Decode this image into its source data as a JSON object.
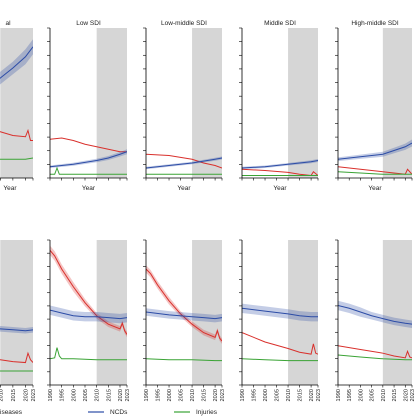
{
  "chart_data": {
    "type": "line",
    "x_range": [
      1990,
      2023
    ],
    "x_ticks": [
      "1990",
      "1995",
      "2000",
      "2005",
      "2010",
      "2015",
      "2020",
      "2023"
    ],
    "shade_range": [
      2010,
      2023
    ],
    "panels_top": [
      {
        "title": "al",
        "series": [
          {
            "key": "ncd",
            "x": [
              1990,
              2000,
              2010,
              2015,
              2020,
              2023
            ],
            "y": [
              0.55,
              0.65,
              0.8,
              0.88,
              0.97,
              1.05
            ],
            "band": [
              0.04,
              0.045,
              0.05,
              0.05,
              0.06,
              0.06
            ]
          },
          {
            "key": "comm",
            "x": [
              1990,
              2000,
              2010,
              2015,
              2020,
              2021,
              2022,
              2023
            ],
            "y": [
              0.45,
              0.41,
              0.37,
              0.34,
              0.33,
              0.38,
              0.3,
              0.3
            ],
            "band": [
              0,
              0,
              0,
              0,
              0,
              0,
              0,
              0
            ]
          },
          {
            "key": "inj",
            "x": [
              1990,
              2000,
              2010,
              2020,
              2023
            ],
            "y": [
              0.15,
              0.14,
              0.15,
              0.15,
              0.16
            ],
            "band": [
              0,
              0,
              0,
              0,
              0
            ]
          }
        ]
      },
      {
        "title": "Low SDI",
        "series": [
          {
            "key": "comm",
            "x": [
              1990,
              1995,
              2000,
              2005,
              2010,
              2015,
              2020,
              2023
            ],
            "y": [
              0.31,
              0.32,
              0.3,
              0.27,
              0.25,
              0.23,
              0.21,
              0.21
            ],
            "band": [
              0,
              0,
              0,
              0,
              0,
              0,
              0,
              0
            ]
          },
          {
            "key": "ncd",
            "x": [
              1990,
              2000,
              2010,
              2015,
              2020,
              2023
            ],
            "y": [
              0.09,
              0.11,
              0.14,
              0.16,
              0.19,
              0.21
            ],
            "band": [
              0.01,
              0.012,
              0.014,
              0.016,
              0.018,
              0.02
            ]
          },
          {
            "key": "inj",
            "x": [
              1990,
              1992,
              1993,
              1994,
              2000,
              2010,
              2020,
              2023
            ],
            "y": [
              0.03,
              0.03,
              0.08,
              0.03,
              0.03,
              0.03,
              0.03,
              0.03
            ],
            "band": [
              0,
              0,
              0,
              0,
              0,
              0,
              0,
              0
            ]
          }
        ]
      },
      {
        "title": "Low-middle SDI",
        "series": [
          {
            "key": "comm",
            "x": [
              1990,
              2000,
              2010,
              2015,
              2020,
              2023
            ],
            "y": [
              0.19,
              0.18,
              0.15,
              0.12,
              0.1,
              0.08
            ],
            "band": [
              0,
              0,
              0,
              0,
              0,
              0
            ]
          },
          {
            "key": "ncd",
            "x": [
              1990,
              2000,
              2010,
              2020,
              2023
            ],
            "y": [
              0.08,
              0.1,
              0.12,
              0.15,
              0.16
            ],
            "band": [
              0.01,
              0.01,
              0.01,
              0.012,
              0.012
            ]
          },
          {
            "key": "inj",
            "x": [
              1990,
              2000,
              2010,
              2020,
              2023
            ],
            "y": [
              0.03,
              0.03,
              0.03,
              0.03,
              0.03
            ],
            "band": [
              0,
              0,
              0,
              0,
              0
            ]
          }
        ]
      },
      {
        "title": "Middle SDI",
        "series": [
          {
            "key": "ncd",
            "x": [
              1990,
              2000,
              2010,
              2020,
              2023
            ],
            "y": [
              0.08,
              0.09,
              0.11,
              0.13,
              0.14
            ],
            "band": [
              0.01,
              0.01,
              0.01,
              0.012,
              0.012
            ]
          },
          {
            "key": "comm",
            "x": [
              1990,
              2000,
              2010,
              2015,
              2020,
              2021,
              2023
            ],
            "y": [
              0.07,
              0.06,
              0.045,
              0.03,
              0.02,
              0.05,
              0.02
            ],
            "band": [
              0,
              0,
              0,
              0,
              0,
              0,
              0
            ]
          },
          {
            "key": "inj",
            "x": [
              1990,
              2000,
              2010,
              2020,
              2023
            ],
            "y": [
              0.02,
              0.02,
              0.02,
              0.02,
              0.02
            ],
            "band": [
              0,
              0,
              0,
              0,
              0
            ]
          }
        ]
      },
      {
        "title": "High-middle SDI",
        "series": [
          {
            "key": "ncd",
            "x": [
              1990,
              2000,
              2010,
              2015,
              2020,
              2023
            ],
            "y": [
              0.15,
              0.17,
              0.19,
              0.22,
              0.25,
              0.28
            ],
            "band": [
              0.015,
              0.017,
              0.02,
              0.022,
              0.025,
              0.028
            ]
          },
          {
            "key": "comm",
            "x": [
              1990,
              2000,
              2010,
              2015,
              2020,
              2021,
              2023
            ],
            "y": [
              0.09,
              0.07,
              0.05,
              0.04,
              0.03,
              0.07,
              0.03
            ],
            "band": [
              0,
              0,
              0,
              0,
              0,
              0,
              0
            ]
          },
          {
            "key": "inj",
            "x": [
              1990,
              2000,
              2010,
              2020,
              2023
            ],
            "y": [
              0.05,
              0.04,
              0.03,
              0.03,
              0.03
            ],
            "band": [
              0,
              0,
              0,
              0,
              0
            ]
          }
        ]
      }
    ],
    "panels_bottom": [
      {
        "series": [
          {
            "key": "ncd",
            "x": [
              1990,
              2000,
              2010,
              2015,
              2020,
              2023
            ],
            "y": [
              0.64,
              0.62,
              0.6,
              0.59,
              0.58,
              0.59
            ],
            "band": [
              0.03,
              0.03,
              0.03,
              0.03,
              0.03,
              0.03
            ]
          },
          {
            "key": "comm",
            "x": [
              1990,
              2000,
              2010,
              2015,
              2020,
              2021,
              2022,
              2023
            ],
            "y": [
              0.35,
              0.31,
              0.27,
              0.25,
              0.24,
              0.34,
              0.27,
              0.24
            ],
            "band": [
              0,
              0,
              0,
              0,
              0,
              0,
              0,
              0
            ]
          },
          {
            "key": "inj",
            "x": [
              1990,
              2000,
              2010,
              2020,
              2023
            ],
            "y": [
              0.18,
              0.16,
              0.15,
              0.15,
              0.15
            ],
            "band": [
              0,
              0,
              0,
              0,
              0
            ]
          }
        ]
      },
      {
        "series": [
          {
            "key": "comm",
            "x": [
              1990,
              1992,
              1995,
              2000,
              2005,
              2010,
              2015,
              2020,
              2021,
              2022,
              2023
            ],
            "y": [
              1.44,
              1.38,
              1.24,
              1.05,
              0.88,
              0.74,
              0.65,
              0.6,
              0.66,
              0.58,
              0.54
            ],
            "band": [
              0.05,
              0.05,
              0.05,
              0.05,
              0.04,
              0.03,
              0.03,
              0.03,
              0.03,
              0.03,
              0.03
            ]
          },
          {
            "key": "ncd",
            "x": [
              1990,
              1995,
              2000,
              2005,
              2010,
              2015,
              2020,
              2023
            ],
            "y": [
              0.8,
              0.77,
              0.74,
              0.73,
              0.73,
              0.72,
              0.71,
              0.72
            ],
            "band": [
              0.05,
              0.05,
              0.05,
              0.05,
              0.05,
              0.05,
              0.05,
              0.05
            ]
          },
          {
            "key": "inj",
            "x": [
              1990,
              1992,
              1993,
              1994,
              1995,
              2000,
              2010,
              2020,
              2023
            ],
            "y": [
              0.28,
              0.29,
              0.4,
              0.31,
              0.28,
              0.28,
              0.27,
              0.27,
              0.27
            ],
            "band": [
              0,
              0,
              0,
              0,
              0,
              0,
              0,
              0,
              0
            ]
          }
        ]
      },
      {
        "series": [
          {
            "key": "comm",
            "x": [
              1990,
              1992,
              1995,
              2000,
              2005,
              2010,
              2015,
              2020,
              2021,
              2022,
              2023
            ],
            "y": [
              1.24,
              1.19,
              1.07,
              0.9,
              0.76,
              0.65,
              0.56,
              0.51,
              0.58,
              0.5,
              0.47
            ],
            "band": [
              0.04,
              0.04,
              0.04,
              0.04,
              0.03,
              0.03,
              0.03,
              0.03,
              0.03,
              0.03,
              0.03
            ]
          },
          {
            "key": "ncd",
            "x": [
              1990,
              2000,
              2010,
              2015,
              2020,
              2023
            ],
            "y": [
              0.78,
              0.75,
              0.73,
              0.72,
              0.71,
              0.72
            ],
            "band": [
              0.04,
              0.04,
              0.04,
              0.04,
              0.04,
              0.04
            ]
          },
          {
            "key": "inj",
            "x": [
              1990,
              2000,
              2010,
              2020,
              2023
            ],
            "y": [
              0.28,
              0.27,
              0.27,
              0.26,
              0.26
            ],
            "band": [
              0,
              0,
              0,
              0,
              0
            ]
          }
        ]
      },
      {
        "series": [
          {
            "key": "ncd",
            "x": [
              1990,
              2000,
              2010,
              2015,
              2020,
              2023
            ],
            "y": [
              0.82,
              0.79,
              0.76,
              0.74,
              0.73,
              0.73
            ],
            "band": [
              0.05,
              0.05,
              0.05,
              0.05,
              0.05,
              0.05
            ]
          },
          {
            "key": "comm",
            "x": [
              1990,
              2000,
              2010,
              2015,
              2020,
              2021,
              2022,
              2023
            ],
            "y": [
              0.56,
              0.46,
              0.39,
              0.35,
              0.33,
              0.44,
              0.34,
              0.33
            ],
            "band": [
              0,
              0,
              0,
              0,
              0,
              0,
              0,
              0
            ]
          },
          {
            "key": "inj",
            "x": [
              1990,
              2000,
              2010,
              2020,
              2023
            ],
            "y": [
              0.28,
              0.27,
              0.26,
              0.26,
              0.26
            ],
            "band": [
              0,
              0,
              0,
              0,
              0
            ]
          }
        ]
      },
      {
        "series": [
          {
            "key": "ncd",
            "x": [
              1990,
              1995,
              2000,
              2005,
              2010,
              2015,
              2020,
              2023
            ],
            "y": [
              0.85,
              0.82,
              0.78,
              0.74,
              0.71,
              0.68,
              0.66,
              0.65
            ],
            "band": [
              0.05,
              0.05,
              0.05,
              0.04,
              0.04,
              0.04,
              0.04,
              0.04
            ]
          },
          {
            "key": "comm",
            "x": [
              1990,
              2000,
              2010,
              2015,
              2020,
              2021,
              2022,
              2023
            ],
            "y": [
              0.42,
              0.38,
              0.34,
              0.31,
              0.29,
              0.36,
              0.3,
              0.29
            ],
            "band": [
              0,
              0,
              0,
              0,
              0,
              0,
              0,
              0
            ]
          },
          {
            "key": "inj",
            "x": [
              1990,
              2000,
              2010,
              2020,
              2023
            ],
            "y": [
              0.32,
              0.3,
              0.28,
              0.27,
              0.27
            ],
            "band": [
              0,
              0,
              0,
              0,
              0
            ]
          }
        ]
      }
    ],
    "top_xlabel": "Year",
    "legend": [
      {
        "key": "comm",
        "label": "iseases",
        "color": "#d9302c"
      },
      {
        "key": "ncd",
        "label": "NCDs",
        "color": "#2c4ca6"
      },
      {
        "key": "inj",
        "label": "Injuries",
        "color": "#3aa335"
      }
    ],
    "colors": {
      "comm": "#d9302c",
      "ncd": "#2c4ca6",
      "inj": "#3aa335",
      "shade": "#d6d6d6"
    }
  }
}
